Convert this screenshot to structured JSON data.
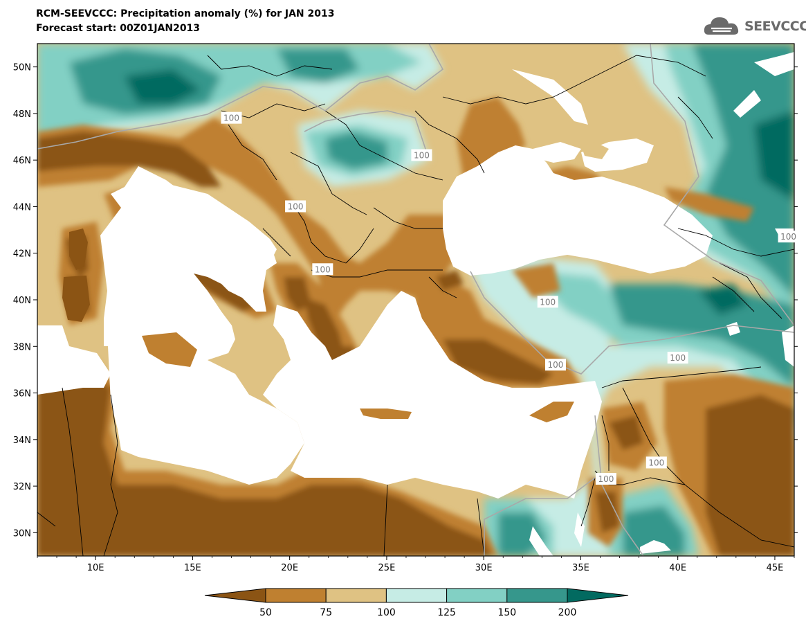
{
  "title": {
    "line1": "RCM-SEEVCCC: Precipitation anomaly (%) for JAN 2013",
    "line2": "Forecast start: 00Z01JAN2013"
  },
  "logo": {
    "text": "SEEVCCC",
    "icon": "cloud-icon",
    "color": "#6a6a6a"
  },
  "map": {
    "lon_range": [
      7,
      46
    ],
    "lat_range": [
      29,
      51
    ],
    "lat_ticks": [
      {
        "value": 30,
        "label": "30N"
      },
      {
        "value": 32,
        "label": "32N"
      },
      {
        "value": 34,
        "label": "34N"
      },
      {
        "value": 36,
        "label": "36N"
      },
      {
        "value": 38,
        "label": "38N"
      },
      {
        "value": 40,
        "label": "40N"
      },
      {
        "value": 42,
        "label": "42N"
      },
      {
        "value": 44,
        "label": "44N"
      },
      {
        "value": 46,
        "label": "46N"
      },
      {
        "value": 48,
        "label": "48N"
      },
      {
        "value": 50,
        "label": "50N"
      }
    ],
    "lon_ticks": [
      {
        "value": 10,
        "label": "10E"
      },
      {
        "value": 15,
        "label": "15E"
      },
      {
        "value": 20,
        "label": "20E"
      },
      {
        "value": 25,
        "label": "25E"
      },
      {
        "value": 30,
        "label": "30E"
      },
      {
        "value": 35,
        "label": "35E"
      },
      {
        "value": 40,
        "label": "40E"
      },
      {
        "value": 45,
        "label": "45E"
      }
    ],
    "contour_labels": [
      {
        "text": "100",
        "lon": 17.0,
        "lat": 47.8
      },
      {
        "text": "100",
        "lon": 20.3,
        "lat": 44.0
      },
      {
        "text": "100",
        "lon": 21.7,
        "lat": 41.3
      },
      {
        "text": "100",
        "lon": 26.8,
        "lat": 46.2
      },
      {
        "text": "100",
        "lon": 33.3,
        "lat": 39.9
      },
      {
        "text": "100",
        "lon": 33.7,
        "lat": 37.2
      },
      {
        "text": "100",
        "lon": 40.0,
        "lat": 37.5
      },
      {
        "text": "100",
        "lon": 38.9,
        "lat": 33.0
      },
      {
        "text": "100",
        "lon": 36.3,
        "lat": 32.3
      },
      {
        "text": "100",
        "lon": 45.7,
        "lat": 42.7
      }
    ]
  },
  "colorbar": {
    "labels": [
      "50",
      "75",
      "100",
      "125",
      "150",
      "200"
    ],
    "colors": [
      "#8b5414",
      "#bf8030",
      "#dfc283",
      "#c6ece5",
      "#82d0c4",
      "#36978c",
      "#026a60"
    ]
  }
}
